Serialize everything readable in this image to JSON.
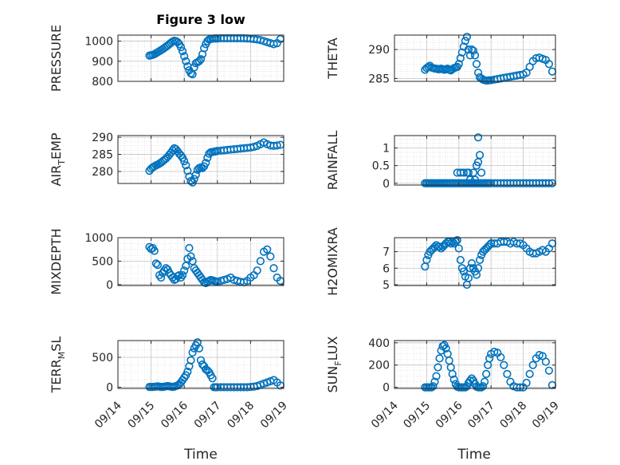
{
  "figure": {
    "marker_color": "#0072BD",
    "grid": "on, dotted major and minor",
    "x_axis": {
      "label": "Time",
      "ticks": [
        "09/14",
        "09/15",
        "09/16",
        "09/17",
        "09/18",
        "09/19"
      ],
      "range": [
        "09/14",
        "09/19"
      ]
    }
  },
  "chart_data": [
    {
      "type": "scatter",
      "title": "Figure 3 low",
      "ylabel": "PRESSURE",
      "ylim": [
        800,
        1030
      ],
      "yticks": [
        800,
        900,
        1000
      ],
      "x": [
        14.95,
        15.0,
        15.05,
        15.1,
        15.15,
        15.2,
        15.25,
        15.3,
        15.35,
        15.4,
        15.45,
        15.5,
        15.55,
        15.6,
        15.65,
        15.7,
        15.75,
        15.8,
        15.85,
        15.9,
        15.95,
        16.0,
        16.05,
        16.1,
        16.15,
        16.2,
        16.25,
        16.3,
        16.35,
        16.4,
        16.45,
        16.5,
        16.55,
        16.6,
        16.65,
        16.7,
        16.75,
        16.8,
        16.85,
        16.9,
        16.95,
        17.0,
        17.1,
        17.2,
        17.3,
        17.4,
        17.5,
        17.6,
        17.7,
        17.8,
        17.9,
        18.0,
        18.1,
        18.2,
        18.3,
        18.4,
        18.5,
        18.6,
        18.7,
        18.8,
        18.9
      ],
      "y": [
        928,
        930,
        932,
        935,
        940,
        945,
        950,
        955,
        960,
        966,
        972,
        978,
        985,
        992,
        998,
        1002,
        1000,
        995,
        985,
        970,
        950,
        925,
        900,
        875,
        855,
        840,
        835,
        870,
        890,
        895,
        900,
        910,
        935,
        965,
        985,
        1000,
        1008,
        1010,
        1012,
        1013,
        1013,
        1013,
        1014,
        1014,
        1014,
        1014,
        1014,
        1014,
        1014,
        1014,
        1013,
        1012,
        1010,
        1008,
        1005,
        1000,
        995,
        990,
        985,
        990,
        1010
      ]
    },
    {
      "type": "scatter",
      "ylabel": "THETA",
      "ylim": [
        284.5,
        292.5
      ],
      "yticks": [
        285,
        290
      ],
      "x": [
        14.95,
        15.0,
        15.05,
        15.1,
        15.15,
        15.2,
        15.25,
        15.3,
        15.35,
        15.4,
        15.45,
        15.5,
        15.55,
        15.6,
        15.65,
        15.7,
        15.75,
        15.8,
        15.85,
        15.9,
        15.95,
        16.0,
        16.05,
        16.1,
        16.15,
        16.2,
        16.25,
        16.3,
        16.35,
        16.4,
        16.45,
        16.5,
        16.55,
        16.6,
        16.65,
        16.7,
        16.75,
        16.8,
        16.85,
        16.9,
        16.95,
        17.0,
        17.1,
        17.2,
        17.3,
        17.4,
        17.5,
        17.6,
        17.7,
        17.8,
        17.9,
        18.0,
        18.1,
        18.2,
        18.3,
        18.4,
        18.5,
        18.6,
        18.7,
        18.8,
        18.9
      ],
      "y": [
        286.5,
        286.8,
        287.0,
        287.2,
        286.9,
        286.8,
        286.7,
        286.7,
        286.6,
        286.6,
        286.7,
        286.6,
        286.5,
        286.6,
        286.7,
        286.5,
        286.4,
        286.6,
        286.8,
        286.9,
        287.0,
        287.5,
        288.5,
        289.5,
        290.5,
        291.5,
        292.2,
        290.0,
        289.0,
        290.0,
        289.8,
        289.0,
        287.5,
        286.0,
        285.2,
        285.0,
        284.8,
        284.7,
        284.6,
        284.6,
        284.7,
        284.7,
        284.8,
        284.9,
        285.0,
        285.1,
        285.2,
        285.3,
        285.4,
        285.5,
        285.6,
        285.7,
        286.0,
        287.0,
        288.0,
        288.5,
        288.6,
        288.4,
        288.2,
        287.5,
        286.2
      ]
    },
    {
      "type": "scatter",
      "ylabel": "AIR_TEMP",
      "ylim": [
        276.5,
        290.5
      ],
      "yticks": [
        280,
        285,
        290
      ],
      "x": [
        14.95,
        15.0,
        15.05,
        15.1,
        15.15,
        15.2,
        15.25,
        15.3,
        15.35,
        15.4,
        15.45,
        15.5,
        15.55,
        15.6,
        15.65,
        15.7,
        15.75,
        15.8,
        15.85,
        15.9,
        15.95,
        16.0,
        16.05,
        16.1,
        16.15,
        16.2,
        16.25,
        16.3,
        16.35,
        16.4,
        16.45,
        16.5,
        16.55,
        16.6,
        16.65,
        16.7,
        16.75,
        16.8,
        16.85,
        16.9,
        16.95,
        17.0,
        17.1,
        17.2,
        17.3,
        17.4,
        17.5,
        17.6,
        17.7,
        17.8,
        17.9,
        18.0,
        18.1,
        18.2,
        18.3,
        18.4,
        18.5,
        18.6,
        18.7,
        18.8,
        18.9
      ],
      "y": [
        280.2,
        280.8,
        281.2,
        281.5,
        281.8,
        282.0,
        282.3,
        282.6,
        283.0,
        283.4,
        283.8,
        284.3,
        284.9,
        285.5,
        286.2,
        286.8,
        286.5,
        285.9,
        285.2,
        284.7,
        284.0,
        283.0,
        281.8,
        280.2,
        278.5,
        277.2,
        276.8,
        277.8,
        279.0,
        280.5,
        281.0,
        281.2,
        281.0,
        281.5,
        282.5,
        284.0,
        285.2,
        285.6,
        285.7,
        285.8,
        285.9,
        286.0,
        286.1,
        286.2,
        286.3,
        286.4,
        286.5,
        286.6,
        286.7,
        286.8,
        286.9,
        287.0,
        287.2,
        287.5,
        288.0,
        288.5,
        288.0,
        287.6,
        287.5,
        287.6,
        287.8
      ]
    },
    {
      "type": "scatter",
      "ylabel": "RAINFALL",
      "ylim": [
        -0.05,
        1.35
      ],
      "yticks": [
        0,
        0.5,
        1
      ],
      "x": [
        14.95,
        15.0,
        15.05,
        15.1,
        15.15,
        15.2,
        15.25,
        15.3,
        15.35,
        15.4,
        15.45,
        15.5,
        15.55,
        15.6,
        15.65,
        15.7,
        15.75,
        15.8,
        15.85,
        15.9,
        15.95,
        16.0,
        16.05,
        16.1,
        16.15,
        16.2,
        16.25,
        16.3,
        16.35,
        16.4,
        16.45,
        16.5,
        16.55,
        16.6,
        16.65,
        16.7,
        16.75,
        16.8,
        16.85,
        16.9,
        16.95,
        17.0,
        17.1,
        17.2,
        17.3,
        17.4,
        17.5,
        17.6,
        17.7,
        17.8,
        17.9,
        18.0,
        18.1,
        18.2,
        18.3,
        18.4,
        18.5,
        18.6,
        18.7,
        18.8,
        18.9,
        15.95,
        16.05,
        16.15,
        16.25,
        16.3,
        16.35,
        16.45,
        16.5,
        16.55,
        16.6,
        16.65,
        16.6,
        16.7
      ],
      "y": [
        0,
        0,
        0,
        0,
        0,
        0,
        0,
        0,
        0,
        0,
        0,
        0,
        0,
        0,
        0,
        0,
        0,
        0,
        0,
        0,
        0,
        0,
        0,
        0,
        0,
        0,
        0,
        0,
        0,
        0,
        0,
        0,
        0,
        0,
        0,
        0,
        0,
        0,
        0,
        0,
        0,
        0,
        0,
        0,
        0,
        0,
        0,
        0,
        0,
        0,
        0,
        0,
        0,
        0,
        0,
        0,
        0,
        0,
        0,
        0,
        0,
        0.3,
        0.3,
        0.3,
        0.3,
        0.3,
        0.1,
        0.3,
        0.1,
        0.5,
        0.6,
        0.8,
        1.3,
        0.3
      ]
    },
    {
      "type": "scatter",
      "ylabel": "MIXDEPTH",
      "ylim": [
        -20,
        1000
      ],
      "yticks": [
        0,
        500,
        1000
      ],
      "x": [
        14.95,
        15.0,
        15.05,
        15.1,
        15.15,
        15.2,
        15.25,
        15.3,
        15.35,
        15.4,
        15.45,
        15.5,
        15.55,
        15.6,
        15.65,
        15.7,
        15.75,
        15.8,
        15.85,
        15.9,
        15.95,
        16.0,
        16.05,
        16.1,
        16.15,
        16.2,
        16.25,
        16.3,
        16.35,
        16.4,
        16.45,
        16.5,
        16.55,
        16.6,
        16.65,
        16.7,
        16.75,
        16.8,
        16.85,
        16.9,
        16.95,
        17.0,
        17.1,
        17.2,
        17.3,
        17.4,
        17.5,
        17.6,
        17.7,
        17.8,
        17.9,
        18.0,
        18.1,
        18.2,
        18.3,
        18.4,
        18.5,
        18.6,
        18.7,
        18.8,
        18.9
      ],
      "y": [
        800,
        760,
        780,
        720,
        450,
        420,
        200,
        150,
        250,
        300,
        350,
        320,
        250,
        200,
        150,
        100,
        120,
        180,
        200,
        150,
        200,
        300,
        400,
        550,
        780,
        600,
        500,
        350,
        300,
        250,
        200,
        150,
        100,
        50,
        30,
        60,
        80,
        100,
        90,
        80,
        70,
        60,
        80,
        100,
        120,
        150,
        100,
        80,
        60,
        50,
        80,
        150,
        200,
        300,
        500,
        700,
        750,
        600,
        350,
        150,
        80
      ]
    },
    {
      "type": "scatter",
      "ylabel": "H2OMIXRA",
      "ylim": [
        4.95,
        7.85
      ],
      "yticks": [
        5,
        6,
        7
      ],
      "x": [
        14.95,
        15.0,
        15.05,
        15.1,
        15.15,
        15.2,
        15.25,
        15.3,
        15.35,
        15.4,
        15.45,
        15.5,
        15.55,
        15.6,
        15.65,
        15.7,
        15.75,
        15.8,
        15.85,
        15.9,
        15.95,
        16.0,
        16.05,
        16.1,
        16.15,
        16.2,
        16.25,
        16.3,
        16.35,
        16.4,
        16.45,
        16.5,
        16.55,
        16.6,
        16.65,
        16.7,
        16.75,
        16.8,
        16.85,
        16.9,
        16.95,
        17.0,
        17.1,
        17.2,
        17.3,
        17.4,
        17.5,
        17.6,
        17.7,
        17.8,
        17.9,
        18.0,
        18.1,
        18.2,
        18.3,
        18.4,
        18.5,
        18.6,
        18.7,
        18.8,
        18.9
      ],
      "y": [
        6.1,
        6.5,
        6.8,
        7.0,
        7.1,
        7.2,
        7.3,
        7.4,
        7.3,
        7.3,
        7.2,
        7.3,
        7.4,
        7.5,
        7.6,
        7.6,
        7.5,
        7.6,
        7.5,
        7.6,
        7.7,
        7.2,
        6.5,
        6.0,
        5.8,
        5.5,
        5.0,
        5.4,
        6.0,
        6.3,
        6.0,
        5.8,
        5.6,
        6.0,
        6.5,
        6.8,
        7.0,
        7.1,
        7.2,
        7.3,
        7.4,
        7.5,
        7.5,
        7.5,
        7.6,
        7.6,
        7.6,
        7.5,
        7.6,
        7.5,
        7.5,
        7.4,
        7.2,
        7.0,
        6.9,
        6.9,
        7.0,
        7.1,
        7.0,
        7.2,
        7.5
      ]
    },
    {
      "type": "scatter",
      "ylabel": "TERR_MSL",
      "ylim": [
        -20,
        780
      ],
      "yticks": [
        0,
        500
      ],
      "x": [
        14.95,
        15.0,
        15.05,
        15.1,
        15.15,
        15.2,
        15.25,
        15.3,
        15.35,
        15.4,
        15.45,
        15.5,
        15.55,
        15.6,
        15.65,
        15.7,
        15.75,
        15.8,
        15.85,
        15.9,
        15.95,
        16.0,
        16.05,
        16.1,
        16.15,
        16.2,
        16.25,
        16.3,
        16.35,
        16.4,
        16.45,
        16.5,
        16.55,
        16.6,
        16.65,
        16.7,
        16.75,
        16.8,
        16.85,
        16.9,
        16.95,
        17.0,
        17.1,
        17.2,
        17.3,
        17.4,
        17.5,
        17.6,
        17.7,
        17.8,
        17.9,
        18.0,
        18.1,
        18.2,
        18.3,
        18.4,
        18.5,
        18.6,
        18.7,
        18.8,
        18.9
      ],
      "y": [
        5,
        5,
        5,
        8,
        10,
        15,
        10,
        5,
        5,
        10,
        15,
        20,
        15,
        10,
        5,
        10,
        20,
        30,
        50,
        80,
        120,
        160,
        200,
        260,
        350,
        450,
        580,
        650,
        700,
        750,
        650,
        450,
        380,
        350,
        300,
        280,
        250,
        200,
        150,
        0,
        0,
        0,
        0,
        0,
        0,
        0,
        0,
        0,
        0,
        0,
        0,
        5,
        10,
        20,
        40,
        60,
        80,
        100,
        120,
        80,
        30
      ]
    },
    {
      "type": "scatter",
      "ylabel": "SUN_FLUX",
      "ylim": [
        -10,
        420
      ],
      "yticks": [
        0,
        200,
        400
      ],
      "x": [
        14.95,
        15.0,
        15.05,
        15.1,
        15.15,
        15.2,
        15.25,
        15.3,
        15.35,
        15.4,
        15.45,
        15.5,
        15.55,
        15.6,
        15.65,
        15.7,
        15.75,
        15.8,
        15.85,
        15.9,
        15.95,
        16.0,
        16.05,
        16.1,
        16.15,
        16.2,
        16.25,
        16.3,
        16.35,
        16.4,
        16.45,
        16.5,
        16.55,
        16.6,
        16.65,
        16.7,
        16.75,
        16.8,
        16.85,
        16.9,
        16.95,
        17.0,
        17.1,
        17.2,
        17.3,
        17.4,
        17.5,
        17.6,
        17.7,
        17.8,
        17.9,
        18.0,
        18.1,
        18.2,
        18.3,
        18.4,
        18.5,
        18.6,
        18.7,
        18.8,
        18.9
      ],
      "y": [
        0,
        0,
        0,
        0,
        0,
        10,
        50,
        100,
        180,
        260,
        330,
        370,
        380,
        350,
        300,
        240,
        180,
        120,
        70,
        30,
        5,
        0,
        0,
        0,
        0,
        0,
        10,
        40,
        60,
        80,
        60,
        30,
        5,
        0,
        0,
        0,
        10,
        50,
        120,
        200,
        260,
        300,
        320,
        310,
        270,
        200,
        120,
        50,
        10,
        0,
        0,
        0,
        40,
        120,
        200,
        260,
        290,
        280,
        230,
        150,
        20
      ]
    }
  ]
}
